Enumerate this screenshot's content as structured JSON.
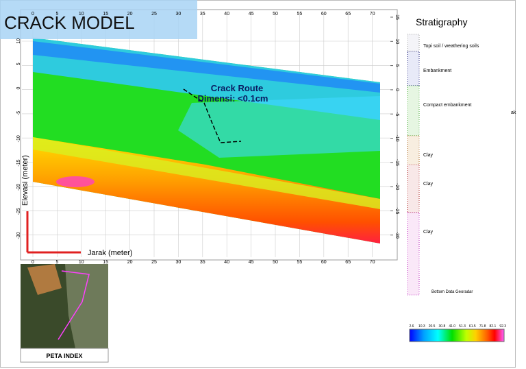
{
  "title": "CRACK MODEL",
  "section": {
    "x_axis_label": "Jarak (meter)",
    "y_axis_label": "Elevasi (meter)",
    "x_ticks": [
      0,
      5,
      10,
      15,
      20,
      25,
      30,
      35,
      40,
      45,
      50,
      55,
      60,
      65,
      70
    ],
    "y_ticks_left": [
      10,
      5,
      0,
      -5,
      -10,
      -15,
      -20,
      -25,
      -30
    ],
    "y_ticks_right": [
      15,
      10,
      5,
      0,
      -5,
      -10,
      -15,
      -20,
      -25,
      -30
    ],
    "annotation": {
      "line1": "Crack Route",
      "line2": "Dimensi: <0.1cm"
    }
  },
  "stratigraphy": {
    "title": "Stratigraphy",
    "layers": [
      "Topi soil / weathering soils",
      "Embankment",
      "Compact embankment",
      "Clay",
      "Clay",
      "Clay"
    ],
    "bottom_label": "Bottom Data Georadar"
  },
  "colorbar": {
    "labels": [
      "2.6",
      "10.3",
      "20.5",
      "30.8",
      "41.0",
      "51.3",
      "61.5",
      "71.8",
      "82.1",
      "92.3"
    ]
  },
  "map": {
    "caption": "PETA INDEX"
  },
  "fragment": "ak"
}
